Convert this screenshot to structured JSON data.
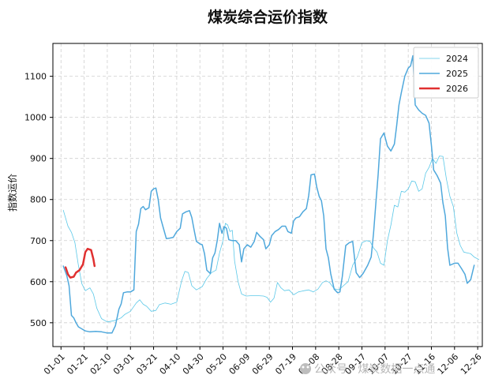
{
  "chart_data": {
    "type": "line",
    "title": "煤炭综合运价指数",
    "xlabel": "",
    "ylabel": "指数运价",
    "xlim": [
      -7,
      364
    ],
    "ylim": [
      442,
      1180
    ],
    "yticks": [
      500,
      600,
      700,
      800,
      900,
      1000,
      1100
    ],
    "x_ticks": [
      {
        "day": 0,
        "label": "01-01"
      },
      {
        "day": 20,
        "label": "01-21"
      },
      {
        "day": 40,
        "label": "02-10"
      },
      {
        "day": 60,
        "label": "03-01"
      },
      {
        "day": 80,
        "label": "03-21"
      },
      {
        "day": 100,
        "label": "04-10"
      },
      {
        "day": 120,
        "label": "04-30"
      },
      {
        "day": 140,
        "label": "05-20"
      },
      {
        "day": 160,
        "label": "06-09"
      },
      {
        "day": 180,
        "label": "06-29"
      },
      {
        "day": 200,
        "label": "07-19"
      },
      {
        "day": 220,
        "label": "08-08"
      },
      {
        "day": 240,
        "label": "08-28"
      },
      {
        "day": 260,
        "label": "09-17"
      },
      {
        "day": 280,
        "label": "10-07"
      },
      {
        "day": 300,
        "label": "10-27"
      },
      {
        "day": 320,
        "label": "11-16"
      },
      {
        "day": 340,
        "label": "12-06"
      },
      {
        "day": 360,
        "label": "12-26"
      }
    ],
    "grid": true,
    "legend_position": "upper-right",
    "series": [
      {
        "name": "2024",
        "color": "#5bc8e8",
        "style": "thin",
        "points": [
          [
            2,
            774
          ],
          [
            6,
            735
          ],
          [
            9,
            720
          ],
          [
            12,
            695
          ],
          [
            15,
            640
          ],
          [
            18,
            595
          ],
          [
            21,
            578
          ],
          [
            25,
            585
          ],
          [
            28,
            570
          ],
          [
            31,
            535
          ],
          [
            35,
            510
          ],
          [
            40,
            502
          ],
          [
            46,
            505
          ],
          [
            52,
            512
          ],
          [
            55,
            520
          ],
          [
            60,
            528
          ],
          [
            65,
            548
          ],
          [
            68,
            556
          ],
          [
            71,
            545
          ],
          [
            74,
            540
          ],
          [
            78,
            528
          ],
          [
            82,
            530
          ],
          [
            85,
            544
          ],
          [
            90,
            548
          ],
          [
            95,
            545
          ],
          [
            100,
            550
          ],
          [
            104,
            600
          ],
          [
            107,
            625
          ],
          [
            110,
            622
          ],
          [
            113,
            590
          ],
          [
            117,
            580
          ],
          [
            122,
            588
          ],
          [
            126,
            608
          ],
          [
            130,
            622
          ],
          [
            134,
            628
          ],
          [
            137,
            670
          ],
          [
            140,
            700
          ],
          [
            142,
            742
          ],
          [
            144,
            738
          ],
          [
            146,
            722
          ],
          [
            148,
            725
          ],
          [
            150,
            650
          ],
          [
            153,
            600
          ],
          [
            156,
            570
          ],
          [
            160,
            565
          ],
          [
            165,
            566
          ],
          [
            170,
            566
          ],
          [
            175,
            565
          ],
          [
            178,
            562
          ],
          [
            181,
            550
          ],
          [
            184,
            560
          ],
          [
            187,
            598
          ],
          [
            190,
            585
          ],
          [
            193,
            578
          ],
          [
            197,
            580
          ],
          [
            201,
            568
          ],
          [
            205,
            575
          ],
          [
            210,
            578
          ],
          [
            214,
            580
          ],
          [
            218,
            575
          ],
          [
            222,
            582
          ],
          [
            226,
            598
          ],
          [
            229,
            602
          ],
          [
            232,
            598
          ],
          [
            236,
            583
          ],
          [
            240,
            580
          ],
          [
            244,
            590
          ],
          [
            248,
            600
          ],
          [
            252,
            640
          ],
          [
            256,
            660
          ],
          [
            260,
            695
          ],
          [
            264,
            700
          ],
          [
            267,
            698
          ],
          [
            270,
            682
          ],
          [
            273,
            672
          ],
          [
            276,
            645
          ],
          [
            279,
            640
          ],
          [
            282,
            700
          ],
          [
            285,
            738
          ],
          [
            288,
            786
          ],
          [
            291,
            782
          ],
          [
            294,
            820
          ],
          [
            297,
            818
          ],
          [
            300,
            826
          ],
          [
            303,
            845
          ],
          [
            306,
            843
          ],
          [
            309,
            820
          ],
          [
            312,
            826
          ],
          [
            315,
            864
          ],
          [
            318,
            878
          ],
          [
            321,
            900
          ],
          [
            324,
            888
          ],
          [
            327,
            906
          ],
          [
            330,
            905
          ],
          [
            333,
            850
          ],
          [
            336,
            808
          ],
          [
            339,
            783
          ],
          [
            342,
            718
          ],
          [
            345,
            688
          ],
          [
            348,
            672
          ],
          [
            351,
            670
          ],
          [
            354,
            668
          ],
          [
            357,
            660
          ],
          [
            361,
            654
          ]
        ]
      },
      {
        "name": "2025",
        "color": "#4fa8dc",
        "style": "medium",
        "points": [
          [
            2,
            638
          ],
          [
            5,
            615
          ],
          [
            7,
            590
          ],
          [
            9,
            518
          ],
          [
            11,
            512
          ],
          [
            13,
            500
          ],
          [
            15,
            490
          ],
          [
            18,
            485
          ],
          [
            21,
            480
          ],
          [
            25,
            478
          ],
          [
            30,
            479
          ],
          [
            35,
            478
          ],
          [
            40,
            475
          ],
          [
            44,
            475
          ],
          [
            47,
            493
          ],
          [
            50,
            533
          ],
          [
            52,
            546
          ],
          [
            54,
            573
          ],
          [
            57,
            575
          ],
          [
            60,
            575
          ],
          [
            63,
            580
          ],
          [
            65,
            722
          ],
          [
            67,
            740
          ],
          [
            69,
            778
          ],
          [
            71,
            783
          ],
          [
            73,
            775
          ],
          [
            76,
            780
          ],
          [
            78,
            820
          ],
          [
            80,
            826
          ],
          [
            82,
            828
          ],
          [
            84,
            800
          ],
          [
            86,
            755
          ],
          [
            88,
            735
          ],
          [
            91,
            705
          ],
          [
            94,
            706
          ],
          [
            97,
            708
          ],
          [
            100,
            722
          ],
          [
            103,
            730
          ],
          [
            105,
            765
          ],
          [
            108,
            770
          ],
          [
            111,
            773
          ],
          [
            113,
            756
          ],
          [
            115,
            726
          ],
          [
            117,
            698
          ],
          [
            120,
            692
          ],
          [
            122,
            690
          ],
          [
            124,
            668
          ],
          [
            126,
            628
          ],
          [
            129,
            620
          ],
          [
            131,
            658
          ],
          [
            133,
            670
          ],
          [
            135,
            700
          ],
          [
            137,
            742
          ],
          [
            139,
            718
          ],
          [
            141,
            734
          ],
          [
            143,
            730
          ],
          [
            145,
            702
          ],
          [
            148,
            700
          ],
          [
            151,
            700
          ],
          [
            154,
            690
          ],
          [
            156,
            648
          ],
          [
            158,
            680
          ],
          [
            161,
            690
          ],
          [
            164,
            684
          ],
          [
            167,
            698
          ],
          [
            169,
            720
          ],
          [
            172,
            710
          ],
          [
            175,
            702
          ],
          [
            177,
            680
          ],
          [
            180,
            690
          ],
          [
            182,
            712
          ],
          [
            185,
            722
          ],
          [
            188,
            727
          ],
          [
            191,
            735
          ],
          [
            194,
            735
          ],
          [
            196,
            722
          ],
          [
            199,
            718
          ],
          [
            201,
            748
          ],
          [
            203,
            755
          ],
          [
            206,
            758
          ],
          [
            209,
            770
          ],
          [
            212,
            778
          ],
          [
            214,
            810
          ],
          [
            216,
            860
          ],
          [
            219,
            862
          ],
          [
            221,
            830
          ],
          [
            223,
            808
          ],
          [
            225,
            797
          ],
          [
            227,
            760
          ],
          [
            229,
            680
          ],
          [
            231,
            658
          ],
          [
            233,
            620
          ],
          [
            236,
            582
          ],
          [
            239,
            573
          ],
          [
            241,
            575
          ],
          [
            243,
            612
          ],
          [
            246,
            688
          ],
          [
            249,
            695
          ],
          [
            252,
            698
          ],
          [
            255,
            622
          ],
          [
            258,
            610
          ],
          [
            261,
            620
          ],
          [
            265,
            640
          ],
          [
            268,
            660
          ],
          [
            270,
            718
          ],
          [
            272,
            790
          ],
          [
            274,
            860
          ],
          [
            276,
            948
          ],
          [
            279,
            962
          ],
          [
            282,
            930
          ],
          [
            285,
            918
          ],
          [
            288,
            935
          ],
          [
            290,
            980
          ],
          [
            292,
            1030
          ],
          [
            294,
            1060
          ],
          [
            297,
            1100
          ],
          [
            300,
            1120
          ],
          [
            302,
            1125
          ],
          [
            304,
            1150
          ],
          [
            306,
            1030
          ],
          [
            309,
            1018
          ],
          [
            312,
            1010
          ],
          [
            315,
            1005
          ],
          [
            318,
            986
          ],
          [
            320,
            932
          ],
          [
            322,
            872
          ],
          [
            325,
            858
          ],
          [
            328,
            840
          ],
          [
            330,
            792
          ],
          [
            332,
            760
          ],
          [
            334,
            682
          ],
          [
            336,
            640
          ],
          [
            340,
            645
          ],
          [
            343,
            645
          ],
          [
            346,
            632
          ],
          [
            349,
            618
          ],
          [
            351,
            596
          ],
          [
            354,
            605
          ],
          [
            357,
            640
          ]
        ]
      },
      {
        "name": "2026",
        "color": "#e03030",
        "style": "thick",
        "points": [
          [
            4,
            635
          ],
          [
            6,
            618
          ],
          [
            8,
            610
          ],
          [
            11,
            612
          ],
          [
            13,
            622
          ],
          [
            16,
            628
          ],
          [
            19,
            642
          ],
          [
            21,
            672
          ],
          [
            23,
            680
          ],
          [
            26,
            677
          ],
          [
            28,
            655
          ],
          [
            29,
            638
          ]
        ]
      }
    ]
  },
  "watermark": {
    "text": "公众号 · 煤炭数据一点通"
  }
}
